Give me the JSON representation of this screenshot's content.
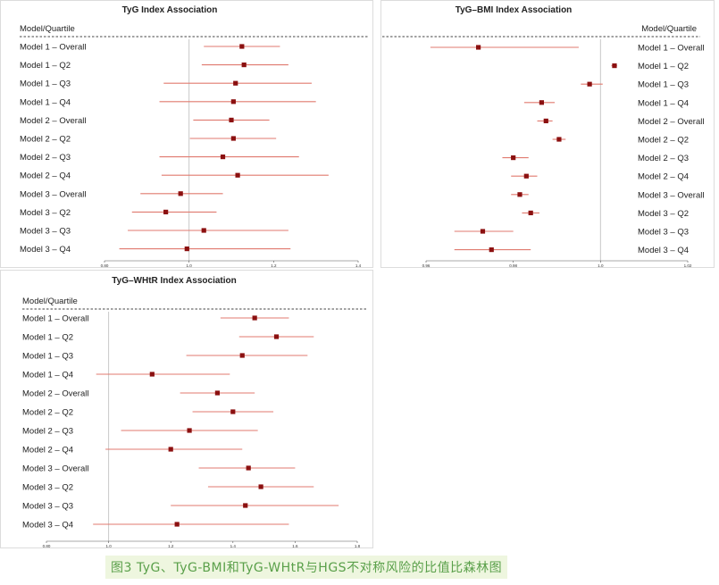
{
  "figure_caption": "图3 TyG、TyG-BMI和TyG-WHtR与HGS不对称风险的比值比森林图",
  "colors": {
    "ci_line": "#e07a6f",
    "point": "#8b1010",
    "ref_line": "#c8c8c8",
    "axis": "#555555",
    "dashed": "#444444"
  },
  "chart_data": [
    {
      "type": "forest",
      "title": "TyG Index Association",
      "header": "Model/Quartile",
      "label_side": "left",
      "xlim": [
        0.8,
        1.4
      ],
      "ticks": [
        "0.80",
        "1.0",
        "1.2",
        "1.4"
      ],
      "ref": 1.0,
      "rows": [
        {
          "label": "Model 1 – Overall",
          "or": 1.125,
          "lo": 1.035,
          "hi": 1.215
        },
        {
          "label": "Model 1 – Q2",
          "or": 1.13,
          "lo": 1.03,
          "hi": 1.235
        },
        {
          "label": "Model 1 – Q3",
          "or": 1.11,
          "lo": 0.94,
          "hi": 1.29
        },
        {
          "label": "Model 1 – Q4",
          "or": 1.105,
          "lo": 0.93,
          "hi": 1.3
        },
        {
          "label": "Model 2 – Overall",
          "or": 1.1,
          "lo": 1.01,
          "hi": 1.19
        },
        {
          "label": "Model 2 – Q2",
          "or": 1.105,
          "lo": 1.002,
          "hi": 1.206
        },
        {
          "label": "Model 2 – Q3",
          "or": 1.08,
          "lo": 0.93,
          "hi": 1.26
        },
        {
          "label": "Model 2 – Q4",
          "or": 1.115,
          "lo": 0.935,
          "hi": 1.33
        },
        {
          "label": "Model 3 – Overall",
          "or": 0.98,
          "lo": 0.885,
          "hi": 1.08
        },
        {
          "label": "Model 3 – Q2",
          "or": 0.945,
          "lo": 0.865,
          "hi": 1.065
        },
        {
          "label": "Model 3 – Q3",
          "or": 1.035,
          "lo": 0.855,
          "hi": 1.235
        },
        {
          "label": "Model 3 – Q4",
          "or": 0.995,
          "lo": 0.835,
          "hi": 1.24
        }
      ]
    },
    {
      "type": "forest",
      "title": "TyG–BMI Index Association",
      "header": "Model/Quartile",
      "label_side": "right",
      "xlim": [
        0.96,
        1.02
      ],
      "ticks": [
        "0.96",
        "0.98",
        "1.0",
        "1.02"
      ],
      "ref": 1.0,
      "rows": [
        {
          "label": "Model 1 – Overall",
          "or": 0.972,
          "lo": 0.961,
          "hi": 0.995
        },
        {
          "label": "Model 1 – Q2",
          "or": 1.0032,
          "lo": 1.0025,
          "hi": 1.0038
        },
        {
          "label": "Model 1 – Q3",
          "or": 0.9975,
          "lo": 0.9955,
          "hi": 1.0005
        },
        {
          "label": "Model 1 – Q4",
          "or": 0.9865,
          "lo": 0.9825,
          "hi": 0.9895
        },
        {
          "label": "Model 2 – Overall",
          "or": 0.9875,
          "lo": 0.9855,
          "hi": 0.989
        },
        {
          "label": "Model 2 – Q2",
          "or": 0.9905,
          "lo": 0.989,
          "hi": 0.992
        },
        {
          "label": "Model 2 – Q3",
          "or": 0.98,
          "lo": 0.9775,
          "hi": 0.9835
        },
        {
          "label": "Model 2 – Q4",
          "or": 0.983,
          "lo": 0.9795,
          "hi": 0.9855
        },
        {
          "label": "Model 3 – Overall",
          "or": 0.9815,
          "lo": 0.9795,
          "hi": 0.9835
        },
        {
          "label": "Model 3 – Q2",
          "or": 0.984,
          "lo": 0.982,
          "hi": 0.986
        },
        {
          "label": "Model 3 – Q3",
          "or": 0.973,
          "lo": 0.9665,
          "hi": 0.98
        },
        {
          "label": "Model 3 – Q4",
          "or": 0.975,
          "lo": 0.9665,
          "hi": 0.984
        }
      ]
    },
    {
      "type": "forest",
      "title": "TyG–WHtR Index Association",
      "header": "Model/Quartile",
      "label_side": "left",
      "xlim": [
        0.8,
        1.8
      ],
      "ticks": [
        "0.80",
        "1.0",
        "1.2",
        "1.4",
        "1.6",
        "1.8"
      ],
      "ref": 1.0,
      "rows": [
        {
          "label": "Model 1 – Overall",
          "or": 1.47,
          "lo": 1.36,
          "hi": 1.58
        },
        {
          "label": "Model 1 – Q2",
          "or": 1.54,
          "lo": 1.42,
          "hi": 1.66
        },
        {
          "label": "Model 1 – Q3",
          "or": 1.43,
          "lo": 1.25,
          "hi": 1.64
        },
        {
          "label": "Model 1 – Q4",
          "or": 1.14,
          "lo": 0.96,
          "hi": 1.39
        },
        {
          "label": "Model 2 – Overall",
          "or": 1.35,
          "lo": 1.23,
          "hi": 1.47
        },
        {
          "label": "Model 2 – Q2",
          "or": 1.4,
          "lo": 1.27,
          "hi": 1.53
        },
        {
          "label": "Model 2 – Q3",
          "or": 1.26,
          "lo": 1.04,
          "hi": 1.48
        },
        {
          "label": "Model 2 – Q4",
          "or": 1.2,
          "lo": 0.99,
          "hi": 1.43
        },
        {
          "label": "Model 3 – Overall",
          "or": 1.45,
          "lo": 1.29,
          "hi": 1.6
        },
        {
          "label": "Model 3 – Q2",
          "or": 1.49,
          "lo": 1.32,
          "hi": 1.66
        },
        {
          "label": "Model 3 – Q3",
          "or": 1.44,
          "lo": 1.2,
          "hi": 1.74
        },
        {
          "label": "Model 3 – Q4",
          "or": 1.22,
          "lo": 0.95,
          "hi": 1.58
        }
      ]
    }
  ]
}
